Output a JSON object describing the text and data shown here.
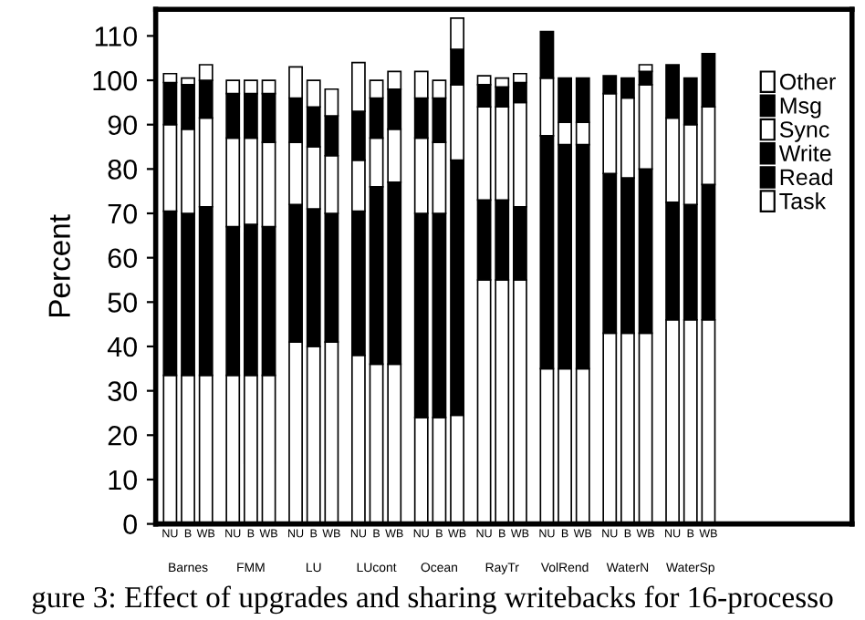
{
  "chart_data": {
    "type": "bar",
    "stacked": true,
    "ylabel": "Percent",
    "categories": [
      "NU",
      "B",
      "WB",
      "NU",
      "B",
      "WB",
      "NU",
      "B",
      "WB",
      "NU",
      "B",
      "WB",
      "NU",
      "B",
      "WB",
      "NU",
      "B",
      "WB",
      "NU",
      "B",
      "WB",
      "NU",
      "B",
      "WB",
      "NU",
      "B",
      "WB"
    ],
    "series": [
      {
        "name": "Task",
        "color": "#ffffff",
        "values": [
          33.5,
          33.5,
          33.5,
          33.5,
          33.5,
          33.5,
          41,
          40,
          41,
          38,
          36,
          36,
          24,
          24,
          24.5,
          55,
          55,
          55,
          35,
          35,
          35,
          43,
          43,
          43,
          46,
          46,
          46
        ]
      },
      {
        "name": "Read",
        "color": "#000000",
        "values": [
          37,
          36.5,
          38,
          33.5,
          34,
          33.5,
          31,
          31,
          29,
          32.5,
          40,
          41,
          46,
          46,
          57.5,
          18,
          18,
          16.5,
          52.5,
          50.5,
          50.5,
          36,
          35,
          37,
          26.5,
          26,
          30.5
        ]
      },
      {
        "name": "Write",
        "color": "#000000",
        "values": [
          0,
          0,
          0,
          0,
          0,
          0,
          0,
          0,
          0,
          0,
          0,
          0,
          0,
          0,
          0,
          0,
          0,
          0,
          0,
          0,
          0,
          0,
          0,
          0,
          0,
          0,
          0
        ]
      },
      {
        "name": "Sync",
        "color": "#ffffff",
        "values": [
          19.5,
          19,
          20,
          20,
          19.5,
          19,
          14,
          14,
          13,
          11.5,
          11,
          12,
          17,
          16,
          17,
          21,
          21,
          23.5,
          13,
          5,
          5,
          18,
          18,
          19,
          19,
          18,
          17.5
        ]
      },
      {
        "name": "Msg",
        "color": "#000000",
        "values": [
          9.5,
          10,
          8.5,
          10,
          10,
          11,
          10,
          9,
          9,
          11,
          9,
          9,
          9,
          10,
          8,
          5,
          4.5,
          4.5,
          10.5,
          10,
          10,
          4,
          4.5,
          3,
          12,
          10.5,
          12
        ]
      },
      {
        "name": "Other",
        "color": "#ffffff",
        "values": [
          2,
          1.5,
          3.5,
          3,
          3,
          3,
          7,
          6,
          6,
          11,
          4,
          4,
          6,
          4,
          7,
          2,
          2,
          2,
          0,
          0,
          0,
          0,
          0,
          1.5,
          0,
          0,
          0
        ]
      }
    ],
    "ylim": [
      0,
      116
    ],
    "yticks": [
      0,
      10,
      20,
      30,
      40,
      50,
      60,
      70,
      80,
      90,
      100,
      110
    ],
    "legend": "top right",
    "grid": false,
    "annotations": [
      "Barnes",
      "FMM",
      "LU",
      "LUcont",
      "Ocean",
      "RayTr",
      "VolRend",
      "WaterN",
      "WaterSp",
      "gure 3: Effect of upgrades and sharing writebacks for 16-processo"
    ]
  }
}
